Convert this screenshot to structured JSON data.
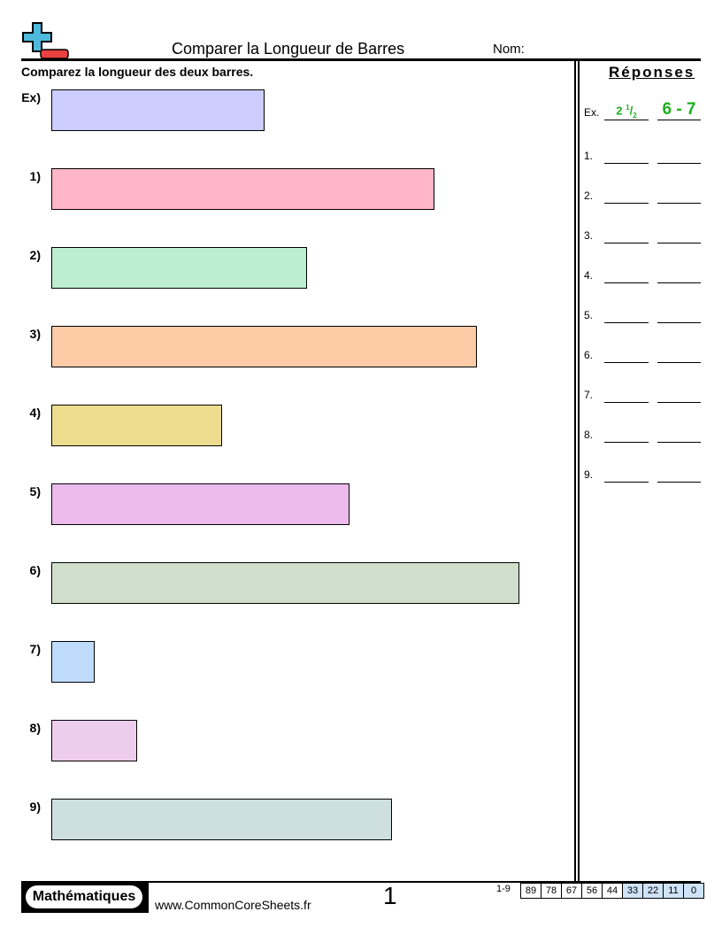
{
  "header": {
    "title": "Comparer la Longueur de Barres",
    "name_label": "Nom:",
    "logo_icon": "plus-minus-logo-icon"
  },
  "instructions": "Comparez la longueur des deux barres.",
  "questions": [
    {
      "label": "Ex)",
      "length_units": 5,
      "color": "#ccccff"
    },
    {
      "label": "1)",
      "length_units": 9,
      "color": "#ffb6c8"
    },
    {
      "label": "2)",
      "length_units": 6,
      "color": "#bdeed0"
    },
    {
      "label": "3)",
      "length_units": 10,
      "color": "#fdcba6"
    },
    {
      "label": "4)",
      "length_units": 4,
      "color": "#ecdc8d"
    },
    {
      "label": "5)",
      "length_units": 7,
      "color": "#ecbbec"
    },
    {
      "label": "6)",
      "length_units": 11,
      "color": "#cfdfcb"
    },
    {
      "label": "7)",
      "length_units": 1,
      "color": "#bfdcfc"
    },
    {
      "label": "8)",
      "length_units": 2,
      "color": "#edcdec"
    },
    {
      "label": "9)",
      "length_units": 8,
      "color": "#cde0df"
    }
  ],
  "answers": {
    "title": "Réponses",
    "example": {
      "label": "Ex.",
      "whole": "2",
      "num": "1",
      "den": "2",
      "range": "6 - 7"
    },
    "rows": [
      "1.",
      "2.",
      "3.",
      "4.",
      "5.",
      "6.",
      "7.",
      "8.",
      "9."
    ]
  },
  "footer": {
    "brand": "Mathématiques",
    "url": "www.CommonCoreSheets.fr",
    "page": "1",
    "range": "1-9",
    "scores": [
      "89",
      "78",
      "67",
      "56",
      "44",
      "33",
      "22",
      "11",
      "0"
    ]
  }
}
